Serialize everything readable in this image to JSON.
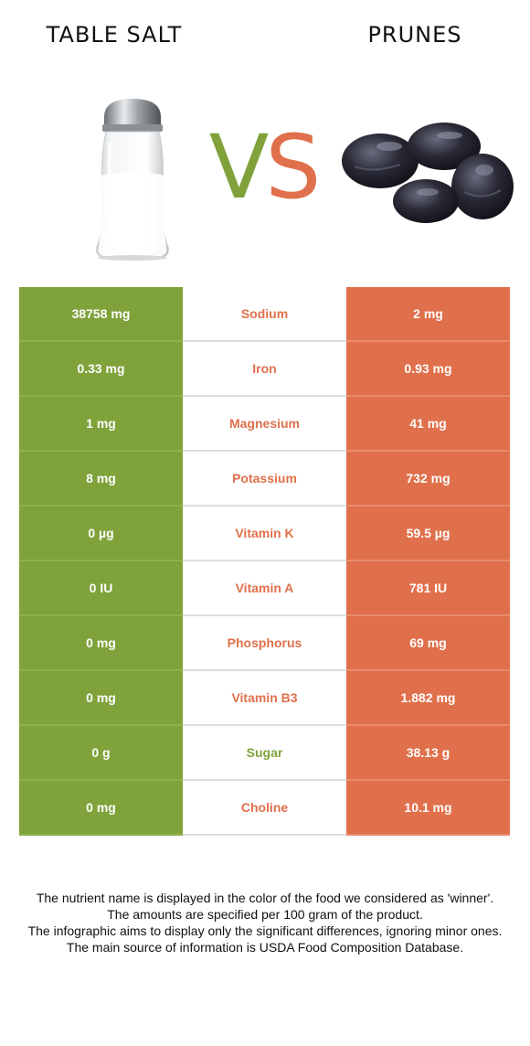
{
  "header": {
    "left_food": "TABLE SALT",
    "right_food": "PRUNES",
    "vs_v": "V",
    "vs_s": "S"
  },
  "colors": {
    "left_food_color": "#7fa23a",
    "right_food_color": "#e0704b",
    "row_divider": "#dddddd"
  },
  "images": {
    "left": "salt-shaker-icon",
    "right": "prunes-icon"
  },
  "rows": [
    {
      "left": "38758 mg",
      "nutrient": "Sodium",
      "right": "2 mg",
      "winner": "right"
    },
    {
      "left": "0.33 mg",
      "nutrient": "Iron",
      "right": "0.93 mg",
      "winner": "right"
    },
    {
      "left": "1 mg",
      "nutrient": "Magnesium",
      "right": "41 mg",
      "winner": "right"
    },
    {
      "left": "8 mg",
      "nutrient": "Potassium",
      "right": "732 mg",
      "winner": "right"
    },
    {
      "left": "0 µg",
      "nutrient": "Vitamin K",
      "right": "59.5 µg",
      "winner": "right"
    },
    {
      "left": "0 IU",
      "nutrient": "Vitamin A",
      "right": "781 IU",
      "winner": "right"
    },
    {
      "left": "0 mg",
      "nutrient": "Phosphorus",
      "right": "69 mg",
      "winner": "right"
    },
    {
      "left": "0 mg",
      "nutrient": "Vitamin B3",
      "right": "1.882 mg",
      "winner": "right"
    },
    {
      "left": "0 g",
      "nutrient": "Sugar",
      "right": "38.13 g",
      "winner": "left"
    },
    {
      "left": "0 mg",
      "nutrient": "Choline",
      "right": "10.1 mg",
      "winner": "right"
    }
  ],
  "footnote": {
    "line1": "The nutrient name is displayed in the color of the food we considered as 'winner'.",
    "line2": "The amounts are specified per 100 gram of the product.",
    "line3": "The infographic aims to display only the significant differences, ignoring minor ones.",
    "line4": "The main source of information is USDA Food Composition Database."
  }
}
